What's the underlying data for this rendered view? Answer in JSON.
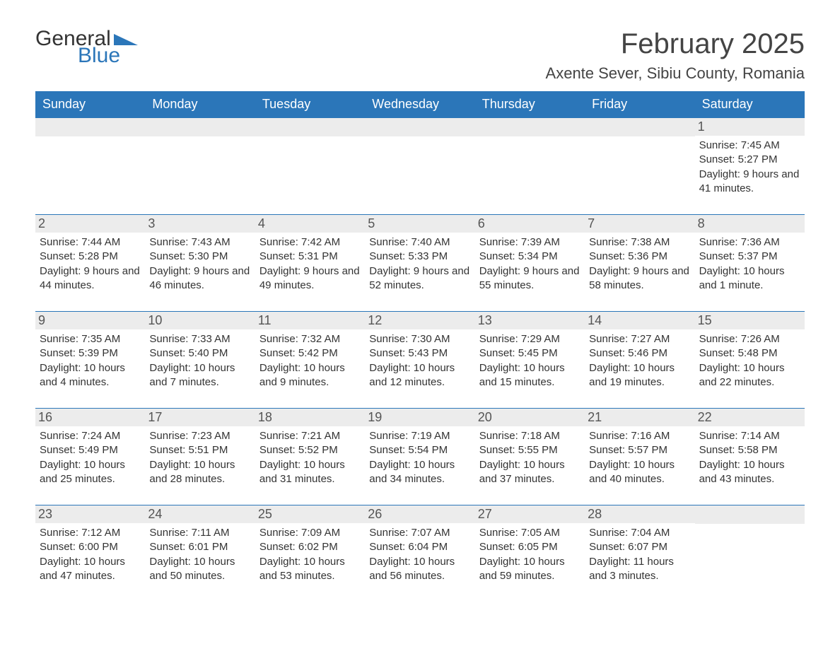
{
  "logo": {
    "word1": "General",
    "word2": "Blue",
    "icon_color": "#2b76b9"
  },
  "title": "February 2025",
  "location": "Axente Sever, Sibiu County, Romania",
  "colors": {
    "header_bg": "#2b76b9",
    "header_text": "#ffffff",
    "daynum_bg": "#ececec",
    "body_text": "#333333",
    "title_text": "#444444",
    "rule": "#2b76b9"
  },
  "fonts": {
    "base_family": "Arial",
    "title_size_pt": 30,
    "body_size_pt": 11,
    "header_size_pt": 14
  },
  "day_names": [
    "Sunday",
    "Monday",
    "Tuesday",
    "Wednesday",
    "Thursday",
    "Friday",
    "Saturday"
  ],
  "weeks": [
    [
      null,
      null,
      null,
      null,
      null,
      null,
      {
        "n": "1",
        "sunrise": "Sunrise: 7:45 AM",
        "sunset": "Sunset: 5:27 PM",
        "daylight": "Daylight: 9 hours and 41 minutes."
      }
    ],
    [
      {
        "n": "2",
        "sunrise": "Sunrise: 7:44 AM",
        "sunset": "Sunset: 5:28 PM",
        "daylight": "Daylight: 9 hours and 44 minutes."
      },
      {
        "n": "3",
        "sunrise": "Sunrise: 7:43 AM",
        "sunset": "Sunset: 5:30 PM",
        "daylight": "Daylight: 9 hours and 46 minutes."
      },
      {
        "n": "4",
        "sunrise": "Sunrise: 7:42 AM",
        "sunset": "Sunset: 5:31 PM",
        "daylight": "Daylight: 9 hours and 49 minutes."
      },
      {
        "n": "5",
        "sunrise": "Sunrise: 7:40 AM",
        "sunset": "Sunset: 5:33 PM",
        "daylight": "Daylight: 9 hours and 52 minutes."
      },
      {
        "n": "6",
        "sunrise": "Sunrise: 7:39 AM",
        "sunset": "Sunset: 5:34 PM",
        "daylight": "Daylight: 9 hours and 55 minutes."
      },
      {
        "n": "7",
        "sunrise": "Sunrise: 7:38 AM",
        "sunset": "Sunset: 5:36 PM",
        "daylight": "Daylight: 9 hours and 58 minutes."
      },
      {
        "n": "8",
        "sunrise": "Sunrise: 7:36 AM",
        "sunset": "Sunset: 5:37 PM",
        "daylight": "Daylight: 10 hours and 1 minute."
      }
    ],
    [
      {
        "n": "9",
        "sunrise": "Sunrise: 7:35 AM",
        "sunset": "Sunset: 5:39 PM",
        "daylight": "Daylight: 10 hours and 4 minutes."
      },
      {
        "n": "10",
        "sunrise": "Sunrise: 7:33 AM",
        "sunset": "Sunset: 5:40 PM",
        "daylight": "Daylight: 10 hours and 7 minutes."
      },
      {
        "n": "11",
        "sunrise": "Sunrise: 7:32 AM",
        "sunset": "Sunset: 5:42 PM",
        "daylight": "Daylight: 10 hours and 9 minutes."
      },
      {
        "n": "12",
        "sunrise": "Sunrise: 7:30 AM",
        "sunset": "Sunset: 5:43 PM",
        "daylight": "Daylight: 10 hours and 12 minutes."
      },
      {
        "n": "13",
        "sunrise": "Sunrise: 7:29 AM",
        "sunset": "Sunset: 5:45 PM",
        "daylight": "Daylight: 10 hours and 15 minutes."
      },
      {
        "n": "14",
        "sunrise": "Sunrise: 7:27 AM",
        "sunset": "Sunset: 5:46 PM",
        "daylight": "Daylight: 10 hours and 19 minutes."
      },
      {
        "n": "15",
        "sunrise": "Sunrise: 7:26 AM",
        "sunset": "Sunset: 5:48 PM",
        "daylight": "Daylight: 10 hours and 22 minutes."
      }
    ],
    [
      {
        "n": "16",
        "sunrise": "Sunrise: 7:24 AM",
        "sunset": "Sunset: 5:49 PM",
        "daylight": "Daylight: 10 hours and 25 minutes."
      },
      {
        "n": "17",
        "sunrise": "Sunrise: 7:23 AM",
        "sunset": "Sunset: 5:51 PM",
        "daylight": "Daylight: 10 hours and 28 minutes."
      },
      {
        "n": "18",
        "sunrise": "Sunrise: 7:21 AM",
        "sunset": "Sunset: 5:52 PM",
        "daylight": "Daylight: 10 hours and 31 minutes."
      },
      {
        "n": "19",
        "sunrise": "Sunrise: 7:19 AM",
        "sunset": "Sunset: 5:54 PM",
        "daylight": "Daylight: 10 hours and 34 minutes."
      },
      {
        "n": "20",
        "sunrise": "Sunrise: 7:18 AM",
        "sunset": "Sunset: 5:55 PM",
        "daylight": "Daylight: 10 hours and 37 minutes."
      },
      {
        "n": "21",
        "sunrise": "Sunrise: 7:16 AM",
        "sunset": "Sunset: 5:57 PM",
        "daylight": "Daylight: 10 hours and 40 minutes."
      },
      {
        "n": "22",
        "sunrise": "Sunrise: 7:14 AM",
        "sunset": "Sunset: 5:58 PM",
        "daylight": "Daylight: 10 hours and 43 minutes."
      }
    ],
    [
      {
        "n": "23",
        "sunrise": "Sunrise: 7:12 AM",
        "sunset": "Sunset: 6:00 PM",
        "daylight": "Daylight: 10 hours and 47 minutes."
      },
      {
        "n": "24",
        "sunrise": "Sunrise: 7:11 AM",
        "sunset": "Sunset: 6:01 PM",
        "daylight": "Daylight: 10 hours and 50 minutes."
      },
      {
        "n": "25",
        "sunrise": "Sunrise: 7:09 AM",
        "sunset": "Sunset: 6:02 PM",
        "daylight": "Daylight: 10 hours and 53 minutes."
      },
      {
        "n": "26",
        "sunrise": "Sunrise: 7:07 AM",
        "sunset": "Sunset: 6:04 PM",
        "daylight": "Daylight: 10 hours and 56 minutes."
      },
      {
        "n": "27",
        "sunrise": "Sunrise: 7:05 AM",
        "sunset": "Sunset: 6:05 PM",
        "daylight": "Daylight: 10 hours and 59 minutes."
      },
      {
        "n": "28",
        "sunrise": "Sunrise: 7:04 AM",
        "sunset": "Sunset: 6:07 PM",
        "daylight": "Daylight: 11 hours and 3 minutes."
      },
      null
    ]
  ]
}
